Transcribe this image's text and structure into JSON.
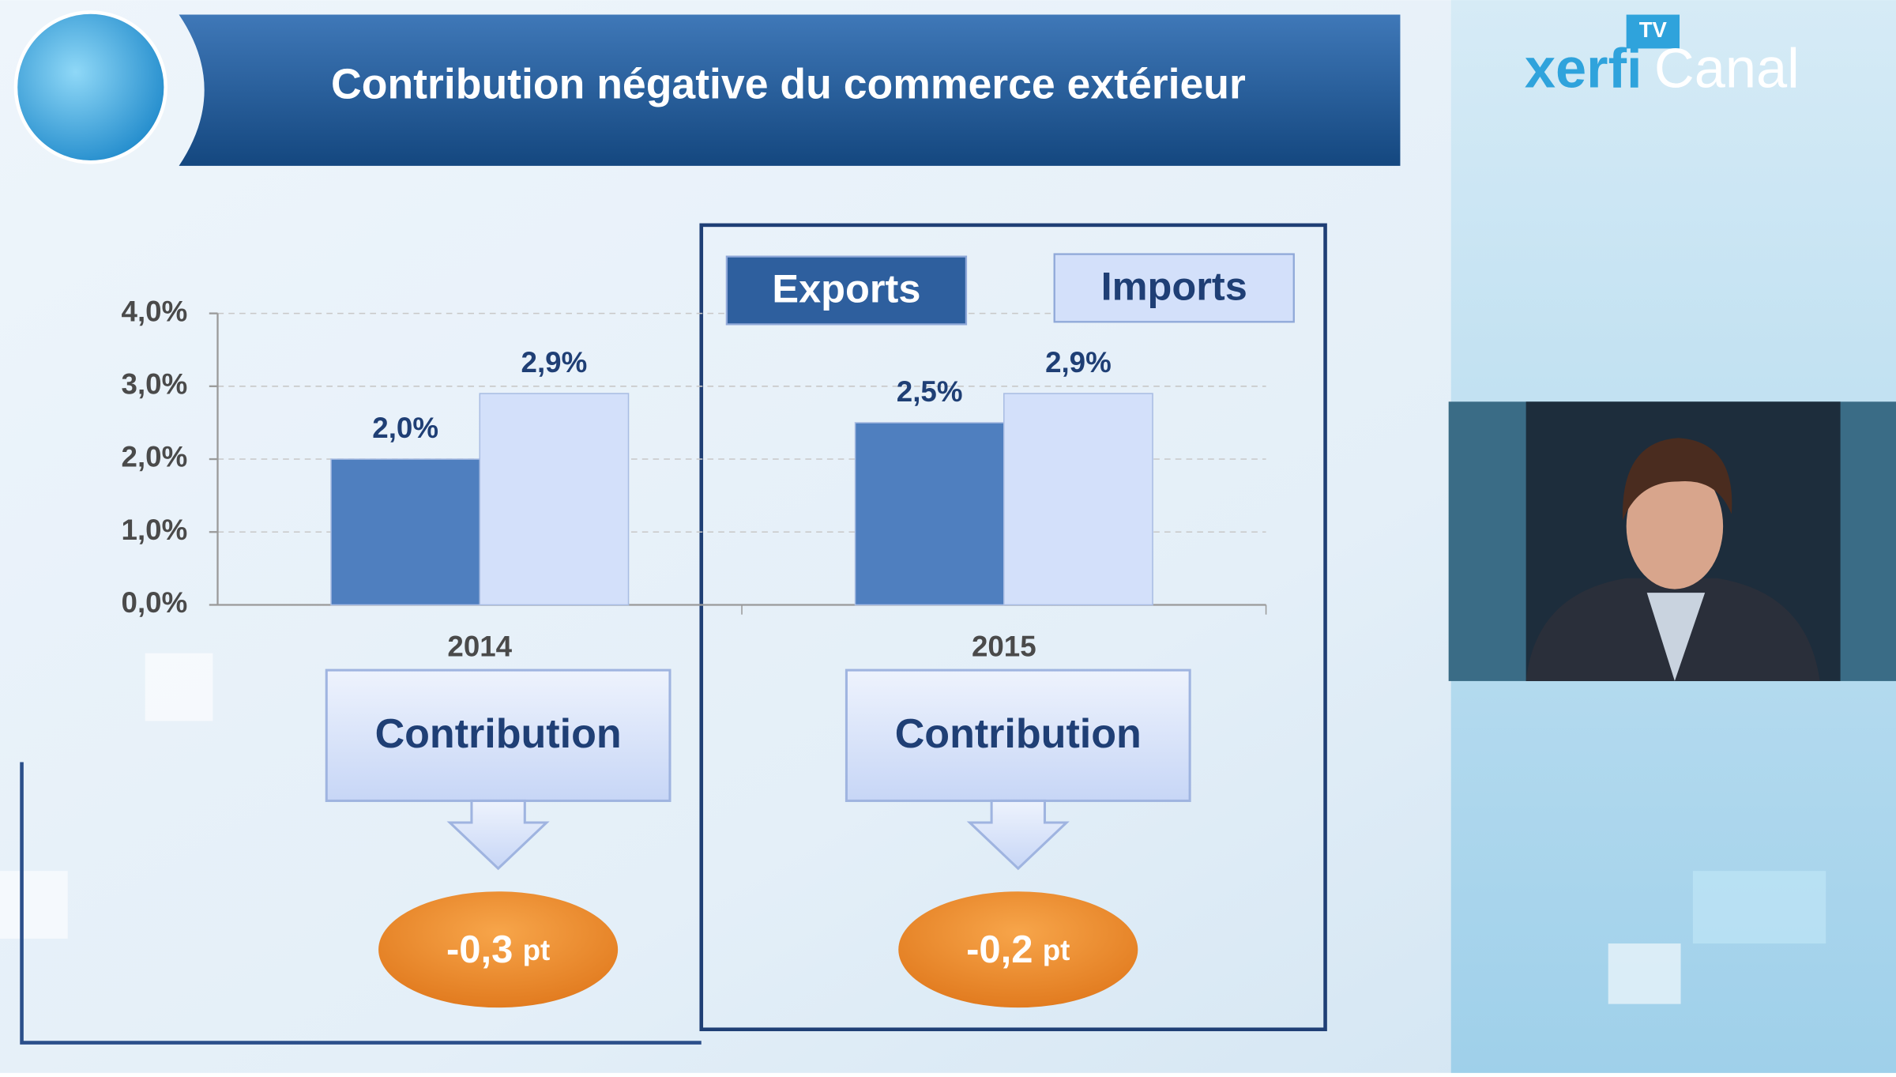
{
  "chart_data": {
    "type": "bar",
    "title": "Contribution négative du commerce extérieur",
    "categories": [
      "2014",
      "2015"
    ],
    "series": [
      {
        "name": "Exports",
        "color": "#4f7fbf",
        "values": [
          2.0,
          2.5
        ],
        "value_labels": [
          "2,0%",
          "2,5%"
        ]
      },
      {
        "name": "Imports",
        "color": "#d3e0fa",
        "values": [
          2.9,
          2.9
        ],
        "value_labels": [
          "2,9%",
          "2,9%"
        ]
      }
    ],
    "ylim": [
      0,
      4
    ],
    "yticks": [
      {
        "value": 0,
        "label": "0,0%"
      },
      {
        "value": 1,
        "label": "1,0%"
      },
      {
        "value": 2,
        "label": "2,0%"
      },
      {
        "value": 3,
        "label": "3,0%"
      },
      {
        "value": 4,
        "label": "4,0%"
      }
    ],
    "grid": true
  },
  "contributions": [
    {
      "label": "Contribution",
      "value": "-0,3",
      "unit": "pt"
    },
    {
      "label": "Contribution",
      "value": "-0,2",
      "unit": "pt"
    }
  ],
  "logo": {
    "brand": "xerfi",
    "channel": "Canal",
    "badge": "TV"
  }
}
